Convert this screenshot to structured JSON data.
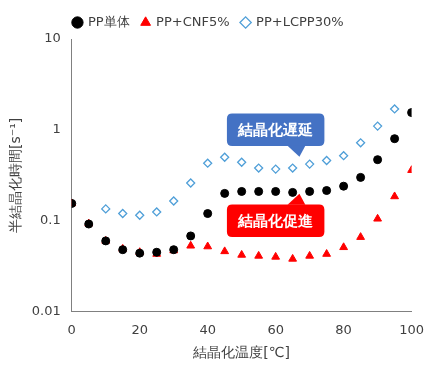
{
  "chart_data": {
    "type": "scatter",
    "x_label": "結晶化温度[℃]",
    "y_label": "半結晶化時間[s⁻¹]",
    "xlim": [
      0,
      100
    ],
    "xticks": [
      0,
      20,
      40,
      60,
      80,
      100
    ],
    "ylim": [
      0.01,
      10
    ],
    "yticks": [
      0.01,
      0.1,
      1,
      10
    ],
    "log": "y",
    "grid": false,
    "legend": "top",
    "series": [
      {
        "name": "PP単体",
        "color": "#000000",
        "marker": "circle",
        "x": [
          0,
          5,
          10,
          15,
          20,
          25,
          30,
          35,
          40,
          45,
          50,
          55,
          60,
          65,
          70,
          75,
          80,
          85,
          90,
          95,
          100
        ],
        "values": [
          0.155,
          0.092,
          0.06,
          0.048,
          0.044,
          0.045,
          0.048,
          0.068,
          0.12,
          0.2,
          0.21,
          0.21,
          0.21,
          0.205,
          0.21,
          0.215,
          0.24,
          0.3,
          0.47,
          0.8,
          1.55
        ]
      },
      {
        "name": "PP+CNF5%",
        "color": "#ff0000",
        "marker": "triangle",
        "x": [
          0,
          5,
          10,
          15,
          20,
          25,
          30,
          35,
          40,
          45,
          50,
          55,
          60,
          65,
          70,
          75,
          80,
          85,
          90,
          95,
          100
        ],
        "values": [
          0.155,
          0.093,
          0.06,
          0.049,
          0.045,
          0.043,
          0.047,
          0.053,
          0.052,
          0.046,
          0.042,
          0.041,
          0.04,
          0.038,
          0.041,
          0.043,
          0.051,
          0.066,
          0.105,
          0.185,
          0.36
        ]
      },
      {
        "name": "PP+LCPP30%",
        "color": "#4f9fd8",
        "marker": "diamond-open",
        "x": [
          10,
          15,
          20,
          25,
          30,
          35,
          40,
          45,
          50,
          55,
          60,
          65,
          70,
          75,
          80,
          85,
          90,
          95
        ],
        "values": [
          0.135,
          0.12,
          0.115,
          0.125,
          0.165,
          0.26,
          0.43,
          0.5,
          0.44,
          0.38,
          0.37,
          0.38,
          0.42,
          0.46,
          0.52,
          0.72,
          1.1,
          1.7
        ]
      }
    ],
    "annotations": [
      {
        "text": "結晶化遅延",
        "x": 60,
        "y": 1.0,
        "color": "#4472c4"
      },
      {
        "text": "結晶化促進",
        "x": 60,
        "y": 0.1,
        "color": "#ff0000"
      }
    ]
  }
}
